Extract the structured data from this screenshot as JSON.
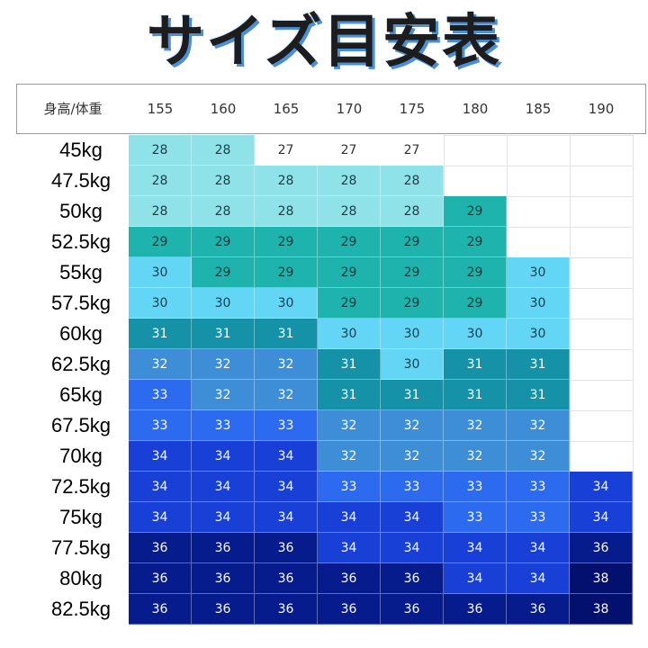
{
  "title": "サイズ目安表",
  "chart_data": {
    "type": "table",
    "corner_label": "身高/体重",
    "columns": [
      "155",
      "160",
      "165",
      "170",
      "175",
      "180",
      "185",
      "190"
    ],
    "rows": [
      "45kg",
      "47.5kg",
      "50kg",
      "52.5kg",
      "55kg",
      "57.5kg",
      "60kg",
      "62.5kg",
      "65kg",
      "67.5kg",
      "70kg",
      "72.5kg",
      "75kg",
      "77.5kg",
      "80kg",
      "82.5kg"
    ],
    "values": [
      [
        "28",
        "28",
        "27",
        "27",
        "27",
        "",
        "",
        ""
      ],
      [
        "28",
        "28",
        "28",
        "28",
        "28",
        "",
        "",
        ""
      ],
      [
        "28",
        "28",
        "28",
        "28",
        "28",
        "29",
        "",
        ""
      ],
      [
        "29",
        "29",
        "29",
        "29",
        "29",
        "29",
        "",
        ""
      ],
      [
        "30",
        "29",
        "29",
        "29",
        "29",
        "29",
        "30",
        ""
      ],
      [
        "30",
        "30",
        "30",
        "29",
        "29",
        "29",
        "30",
        ""
      ],
      [
        "31",
        "31",
        "31",
        "30",
        "30",
        "30",
        "30",
        ""
      ],
      [
        "32",
        "32",
        "32",
        "31",
        "30",
        "31",
        "31",
        ""
      ],
      [
        "33",
        "32",
        "32",
        "31",
        "31",
        "31",
        "31",
        ""
      ],
      [
        "33",
        "33",
        "33",
        "32",
        "32",
        "32",
        "32",
        ""
      ],
      [
        "34",
        "34",
        "34",
        "32",
        "32",
        "32",
        "32",
        ""
      ],
      [
        "34",
        "34",
        "34",
        "33",
        "33",
        "33",
        "33",
        "34"
      ],
      [
        "34",
        "34",
        "34",
        "34",
        "34",
        "33",
        "33",
        "34"
      ],
      [
        "36",
        "36",
        "36",
        "34",
        "34",
        "34",
        "34",
        "36"
      ],
      [
        "36",
        "36",
        "36",
        "36",
        "36",
        "34",
        "34",
        "38"
      ],
      [
        "36",
        "36",
        "36",
        "36",
        "36",
        "36",
        "36",
        "38"
      ]
    ],
    "size_colors": {
      "27": "#ffffff",
      "28": "#8fe3e8",
      "29": "#1fb3ad",
      "30": "#63d6f5",
      "31": "#1591a8",
      "32": "#3d8ed6",
      "33": "#2c6bf0",
      "34": "#1840d6",
      "36": "#061c8c",
      "38": "#04106e"
    }
  }
}
